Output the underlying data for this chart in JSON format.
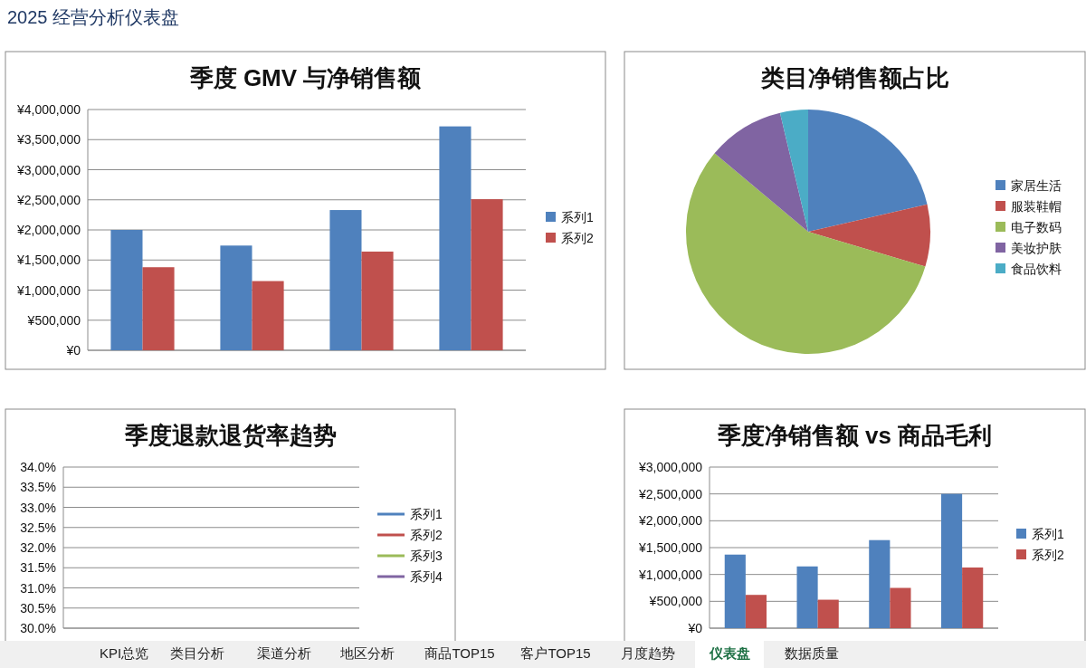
{
  "chart_data": [
    {
      "type": "other",
      "title": "2025 经营分析仪表盘"
    },
    {
      "type": "bar",
      "title": "季度 GMV 与净销售额",
      "categories": [
        null,
        null,
        null,
        null
      ],
      "legend": "right",
      "grid": "y",
      "ylim": [
        0,
        4000000
      ],
      "yticks": [
        {
          "value": 0,
          "label": "¥0"
        },
        {
          "value": 500000,
          "label": "¥500,000"
        },
        {
          "value": 1000000,
          "label": "¥1,000,000"
        },
        {
          "value": 1500000,
          "label": "¥1,500,000"
        },
        {
          "value": 2000000,
          "label": "¥2,000,000"
        },
        {
          "value": 2500000,
          "label": "¥2,500,000"
        },
        {
          "value": 3000000,
          "label": "¥3,000,000"
        },
        {
          "value": 3500000,
          "label": "¥3,500,000"
        },
        {
          "value": 4000000,
          "label": "¥4,000,000"
        }
      ],
      "series": [
        {
          "name": "系列1",
          "color": "#4f81bd",
          "values": [
            2000000,
            1740000,
            2330000,
            3720000
          ]
        },
        {
          "name": "系列2",
          "color": "#c0504d",
          "values": [
            1380000,
            1150000,
            1640000,
            2510000
          ]
        }
      ]
    },
    {
      "type": "pie",
      "title": "类目净销售额占比",
      "legend": "right",
      "categories": [
        "家居生活",
        "服装鞋帽",
        "电子数码",
        "美妆护肤",
        "食品饮料"
      ],
      "values": [
        21.4,
        8.2,
        56.5,
        10.2,
        3.7
      ],
      "colors": [
        "#4f81bd",
        "#c0504d",
        "#9bbb59",
        "#8064a2",
        "#4bacc6"
      ]
    },
    {
      "type": "line",
      "title": "季度退款退货率趋势",
      "categories": [
        null,
        null,
        null,
        null
      ],
      "legend": "right",
      "grid": "y",
      "ylim": [
        30,
        34
      ],
      "yticks": [
        {
          "value": 30,
          "label": "30.0%"
        },
        {
          "value": 30.5,
          "label": "30.5%"
        },
        {
          "value": 31,
          "label": "31.0%"
        },
        {
          "value": 31.5,
          "label": "31.5%"
        },
        {
          "value": 32,
          "label": "32.0%"
        },
        {
          "value": 32.5,
          "label": "32.5%"
        },
        {
          "value": 33,
          "label": "33.0%"
        },
        {
          "value": 33.5,
          "label": "33.5%"
        },
        {
          "value": 34,
          "label": "34.0%"
        }
      ],
      "series": [
        {
          "name": "系列1",
          "color": "#4f81bd",
          "values": [
            null,
            null,
            null,
            null
          ]
        },
        {
          "name": "系列2",
          "color": "#c0504d",
          "values": [
            null,
            null,
            null,
            null
          ]
        },
        {
          "name": "系列3",
          "color": "#9bbb59",
          "values": [
            null,
            null,
            null,
            null
          ]
        },
        {
          "name": "系列4",
          "color": "#8064a2",
          "values": [
            null,
            null,
            null,
            null
          ]
        }
      ]
    },
    {
      "type": "bar",
      "title": "季度净销售额 vs 商品毛利",
      "categories": [
        null,
        null,
        null,
        null
      ],
      "legend": "right",
      "grid": "y",
      "ylim": [
        0,
        3000000
      ],
      "yticks": [
        {
          "value": 0,
          "label": "¥0"
        },
        {
          "value": 500000,
          "label": "¥500,000"
        },
        {
          "value": 1000000,
          "label": "¥1,000,000"
        },
        {
          "value": 1500000,
          "label": "¥1,500,000"
        },
        {
          "value": 2000000,
          "label": "¥2,000,000"
        },
        {
          "value": 2500000,
          "label": "¥2,500,000"
        },
        {
          "value": 3000000,
          "label": "¥3,000,000"
        }
      ],
      "series": [
        {
          "name": "系列1",
          "color": "#4f81bd",
          "values": [
            1370000,
            1150000,
            1640000,
            2500000
          ]
        },
        {
          "name": "系列2",
          "color": "#c0504d",
          "values": [
            620000,
            530000,
            750000,
            1130000
          ]
        }
      ]
    },
    {
      "type": "other",
      "annotations": [
        "KPI总览",
        "类目分析",
        "渠道分析",
        "地区分析",
        "商品TOP15",
        "客户TOP15",
        "月度趋势",
        "仪表盘",
        "数据质量"
      ]
    }
  ]
}
